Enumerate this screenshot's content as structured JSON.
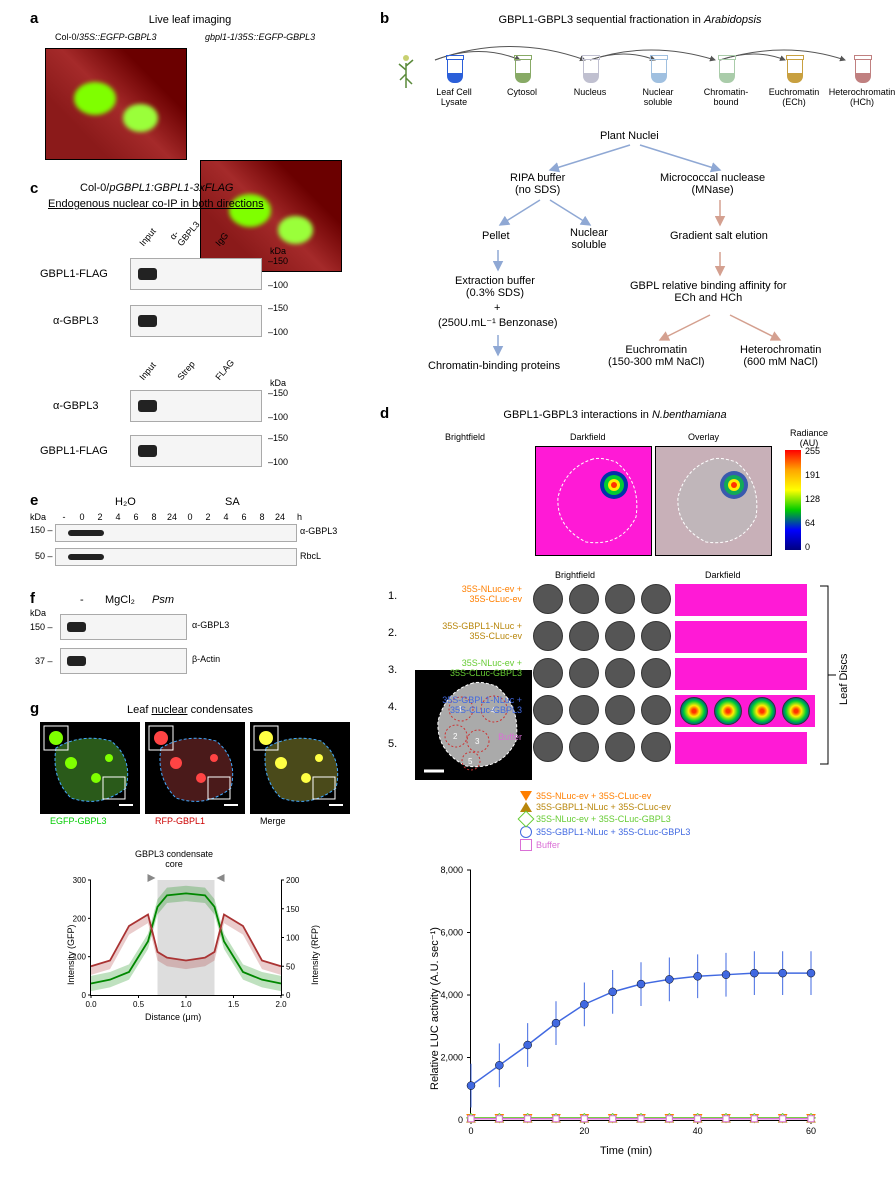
{
  "panel_a": {
    "label": "a",
    "title": "Live leaf imaging",
    "left_title_plain": "Col-0/",
    "left_title_italic": "35S::EGFP-GBPL3",
    "right_title_italic1": "gbpl1-1",
    "right_title_plain": "/",
    "right_title_italic2": "35S::EGFP-GBPL3",
    "gfp_color": "#7fff00",
    "bg_color": "#8b1a1a"
  },
  "panel_b": {
    "label": "b",
    "title_prefix": "GBPL1-GBPL3 sequential fractionation in ",
    "title_italic": "Arabidopsis",
    "tubes": [
      {
        "label": "Leaf Cell\nLysate",
        "color": "#2b5fd9"
      },
      {
        "label": "Cytosol",
        "color": "#88aa66"
      },
      {
        "label": "Nucleus",
        "color": "#c0c0d0"
      },
      {
        "label": "Nuclear\nsoluble",
        "color": "#a0c0e0"
      },
      {
        "label": "Chromatin-\nbound",
        "color": "#aaccaa"
      },
      {
        "label": "Euchromatin\n(ECh)",
        "color": "#c8a040"
      },
      {
        "label": "Heterochromatin\n(HCh)",
        "color": "#c08080"
      }
    ],
    "flow": {
      "plant_nuclei": "Plant Nuclei",
      "ripa": "RIPA buffer\n(no SDS)",
      "mnase": "Micrococcal nuclease\n(MNase)",
      "pellet": "Pellet",
      "nuclear_soluble": "Nuclear\nsoluble",
      "gradient": "Gradient salt elution",
      "extraction": "Extraction buffer\n(0.3% SDS)",
      "plus": "+",
      "benzonase": "(250U.mL⁻¹ Benzonase)",
      "chromatin_binding": "Chromatin-binding proteins",
      "gbpl_affinity": "GBPL relative binding affinity for\nECh and HCh",
      "euchromatin": "Euchromatin\n(150-300 mM NaCl)",
      "heterochromatin": "Heterochromatin\n(600 mM NaCl)"
    },
    "blue_arrow_color": "#8fa8d4",
    "red_arrow_color": "#d4a090"
  },
  "panel_c": {
    "label": "c",
    "title_line1_prefix": "Col-0/",
    "title_line1_italic": "pGBPL1:GBPL1-3xFLAG",
    "title_line2": "Endogenous nuclear co-IP in both directions",
    "lanes_top": [
      "Input",
      "α-GBPL3",
      "IgG"
    ],
    "lanes_bottom": [
      "Input",
      "Strep",
      "FLAG"
    ],
    "rows_top": [
      "GBPL1-FLAG",
      "α-GBPL3"
    ],
    "rows_bottom": [
      "α-GBPL3",
      "GBPL1-FLAG"
    ],
    "markers": [
      "kDa",
      "150",
      "100"
    ],
    "kda_label": "kDa"
  },
  "panel_d": {
    "label": "d",
    "title_prefix": "GBPL1-GBPL3 interactions in ",
    "title_italic": "N.benthamiana",
    "columns": [
      "Brightfield",
      "Darkfield",
      "Overlay"
    ],
    "radiance_label": "Radiance\n(AU)",
    "radiance_ticks": [
      "255",
      "191",
      "128",
      "64",
      "0"
    ],
    "radiance_colors": [
      "#ff0000",
      "#ffa500",
      "#ffff00",
      "#00cc00",
      "#0000ff",
      "#000080"
    ],
    "leaf_zones": [
      "1",
      "2",
      "3",
      "4",
      "5"
    ],
    "disc_cols": [
      "Brightfield",
      "Darkfield"
    ],
    "leaf_discs_label": "Leaf Discs",
    "conditions": [
      {
        "num": "1.",
        "label": "35S-NLuc-ev +\n35S-CLuc-ev",
        "color": "#ff7f00"
      },
      {
        "num": "2.",
        "label": "35S-GBPL1-NLuc +\n35S-CLuc-ev",
        "color": "#b8860b"
      },
      {
        "num": "3.",
        "label": "35S-NLuc-ev +\n35S-CLuc-GBPL3",
        "color": "#66cc33"
      },
      {
        "num": "4.",
        "label": "35S-GBPL1-NLuc +\n35S-CLuc-GBPL3",
        "color": "#4169e1"
      },
      {
        "num": "5.",
        "label": "Buffer",
        "color": "#da70d6"
      }
    ],
    "chart": {
      "xlabel": "Time (min)",
      "ylabel": "Relative LUC activity  (A.U. sec⁻¹)",
      "xlim": [
        0,
        60
      ],
      "ylim": [
        0,
        8000
      ],
      "xticks": [
        0,
        20,
        40,
        60
      ],
      "yticks": [
        0,
        2000,
        4000,
        6000,
        8000
      ],
      "series": [
        {
          "label": "35S-NLuc-ev + 35S-CLuc-ev",
          "color": "#ff7f00",
          "marker": "triangle-down",
          "data": [
            [
              0,
              50
            ],
            [
              5,
              50
            ],
            [
              10,
              50
            ],
            [
              15,
              50
            ],
            [
              20,
              50
            ],
            [
              25,
              50
            ],
            [
              30,
              50
            ],
            [
              35,
              50
            ],
            [
              40,
              50
            ],
            [
              45,
              50
            ],
            [
              50,
              50
            ],
            [
              55,
              50
            ],
            [
              60,
              50
            ]
          ]
        },
        {
          "label": "35S-GBPL1-NLuc + 35S-CLuc-ev",
          "color": "#b8860b",
          "marker": "triangle-up",
          "data": [
            [
              0,
              60
            ],
            [
              5,
              60
            ],
            [
              10,
              60
            ],
            [
              15,
              60
            ],
            [
              20,
              60
            ],
            [
              25,
              60
            ],
            [
              30,
              60
            ],
            [
              35,
              60
            ],
            [
              40,
              60
            ],
            [
              45,
              60
            ],
            [
              50,
              60
            ],
            [
              55,
              60
            ],
            [
              60,
              60
            ]
          ]
        },
        {
          "label": "35S-NLuc-ev + 35S-CLuc-GBPL3",
          "color": "#66cc33",
          "marker": "diamond",
          "data": [
            [
              0,
              70
            ],
            [
              5,
              70
            ],
            [
              10,
              70
            ],
            [
              15,
              70
            ],
            [
              20,
              70
            ],
            [
              25,
              70
            ],
            [
              30,
              70
            ],
            [
              35,
              70
            ],
            [
              40,
              70
            ],
            [
              45,
              70
            ],
            [
              50,
              70
            ],
            [
              55,
              70
            ],
            [
              60,
              70
            ]
          ]
        },
        {
          "label": "35S-GBPL1-NLuc + 35S-CLuc-GBPL3",
          "color": "#4169e1",
          "marker": "circle",
          "data": [
            [
              0,
              1100
            ],
            [
              5,
              1750
            ],
            [
              10,
              2400
            ],
            [
              15,
              3100
            ],
            [
              20,
              3700
            ],
            [
              25,
              4100
            ],
            [
              30,
              4350
            ],
            [
              35,
              4500
            ],
            [
              40,
              4600
            ],
            [
              45,
              4650
            ],
            [
              50,
              4700
            ],
            [
              55,
              4700
            ],
            [
              60,
              4700
            ]
          ],
          "err": 700
        },
        {
          "label": "Buffer",
          "color": "#da70d6",
          "marker": "square",
          "data": [
            [
              0,
              40
            ],
            [
              5,
              40
            ],
            [
              10,
              40
            ],
            [
              15,
              40
            ],
            [
              20,
              40
            ],
            [
              25,
              40
            ],
            [
              30,
              40
            ],
            [
              35,
              40
            ],
            [
              40,
              40
            ],
            [
              45,
              40
            ],
            [
              50,
              40
            ],
            [
              55,
              40
            ],
            [
              60,
              40
            ]
          ]
        }
      ]
    }
  },
  "panel_e": {
    "label": "e",
    "treatments": [
      "H₂O",
      "SA"
    ],
    "timepoints": [
      "-",
      "0",
      "2",
      "4",
      "6",
      "8",
      "24",
      "0",
      "2",
      "4",
      "6",
      "8",
      "24"
    ],
    "timepoint_unit": "h",
    "markers": [
      "150",
      "50"
    ],
    "kda_label": "kDa",
    "rows": [
      "α-GBPL3",
      "RbcL"
    ]
  },
  "panel_f": {
    "label": "f",
    "lanes": [
      "-",
      "MgCl₂"
    ],
    "lane_italic": "Psm",
    "markers": [
      "150",
      "37"
    ],
    "kda_label": "kDa",
    "rows": [
      "α-GBPL3",
      "β-Actin"
    ]
  },
  "panel_g": {
    "label": "g",
    "title": "Leaf nuclear condensates",
    "channels": [
      {
        "label": "EGFP-GBPL3",
        "color": "#00cc00"
      },
      {
        "label": "RFP-GBPL1",
        "color": "#cc0000"
      },
      {
        "label": "Merge",
        "color": "#000000"
      }
    ],
    "chart": {
      "title": "GBPL3 condensate\ncore",
      "xlabel": "Distance (μm)",
      "ylabel_left": "Intensity (GFP)",
      "ylabel_right": "Intensity (RFP)",
      "xlim": [
        0.0,
        2.0
      ],
      "ylim_left": [
        0,
        300
      ],
      "ylim_right": [
        0,
        200
      ],
      "xticks": [
        "0.0",
        "0.5",
        "1.0",
        "1.5",
        "2.0"
      ],
      "yticks_left": [
        0,
        100,
        200,
        300
      ],
      "yticks_right": [
        0,
        50,
        100,
        150,
        200
      ],
      "core_region": [
        0.7,
        1.3
      ],
      "gfp_color": "#008800",
      "rfp_color": "#aa3333",
      "gfp_data": [
        [
          0.0,
          30
        ],
        [
          0.2,
          40
        ],
        [
          0.4,
          60
        ],
        [
          0.6,
          140
        ],
        [
          0.7,
          230
        ],
        [
          0.8,
          260
        ],
        [
          1.0,
          265
        ],
        [
          1.2,
          260
        ],
        [
          1.3,
          230
        ],
        [
          1.4,
          140
        ],
        [
          1.6,
          60
        ],
        [
          1.8,
          40
        ],
        [
          2.0,
          30
        ]
      ],
      "rfp_data": [
        [
          0.0,
          50
        ],
        [
          0.2,
          60
        ],
        [
          0.4,
          120
        ],
        [
          0.6,
          140
        ],
        [
          0.7,
          75
        ],
        [
          0.8,
          65
        ],
        [
          1.0,
          60
        ],
        [
          1.2,
          65
        ],
        [
          1.3,
          75
        ],
        [
          1.4,
          140
        ],
        [
          1.6,
          120
        ],
        [
          1.8,
          60
        ],
        [
          2.0,
          50
        ]
      ]
    }
  }
}
